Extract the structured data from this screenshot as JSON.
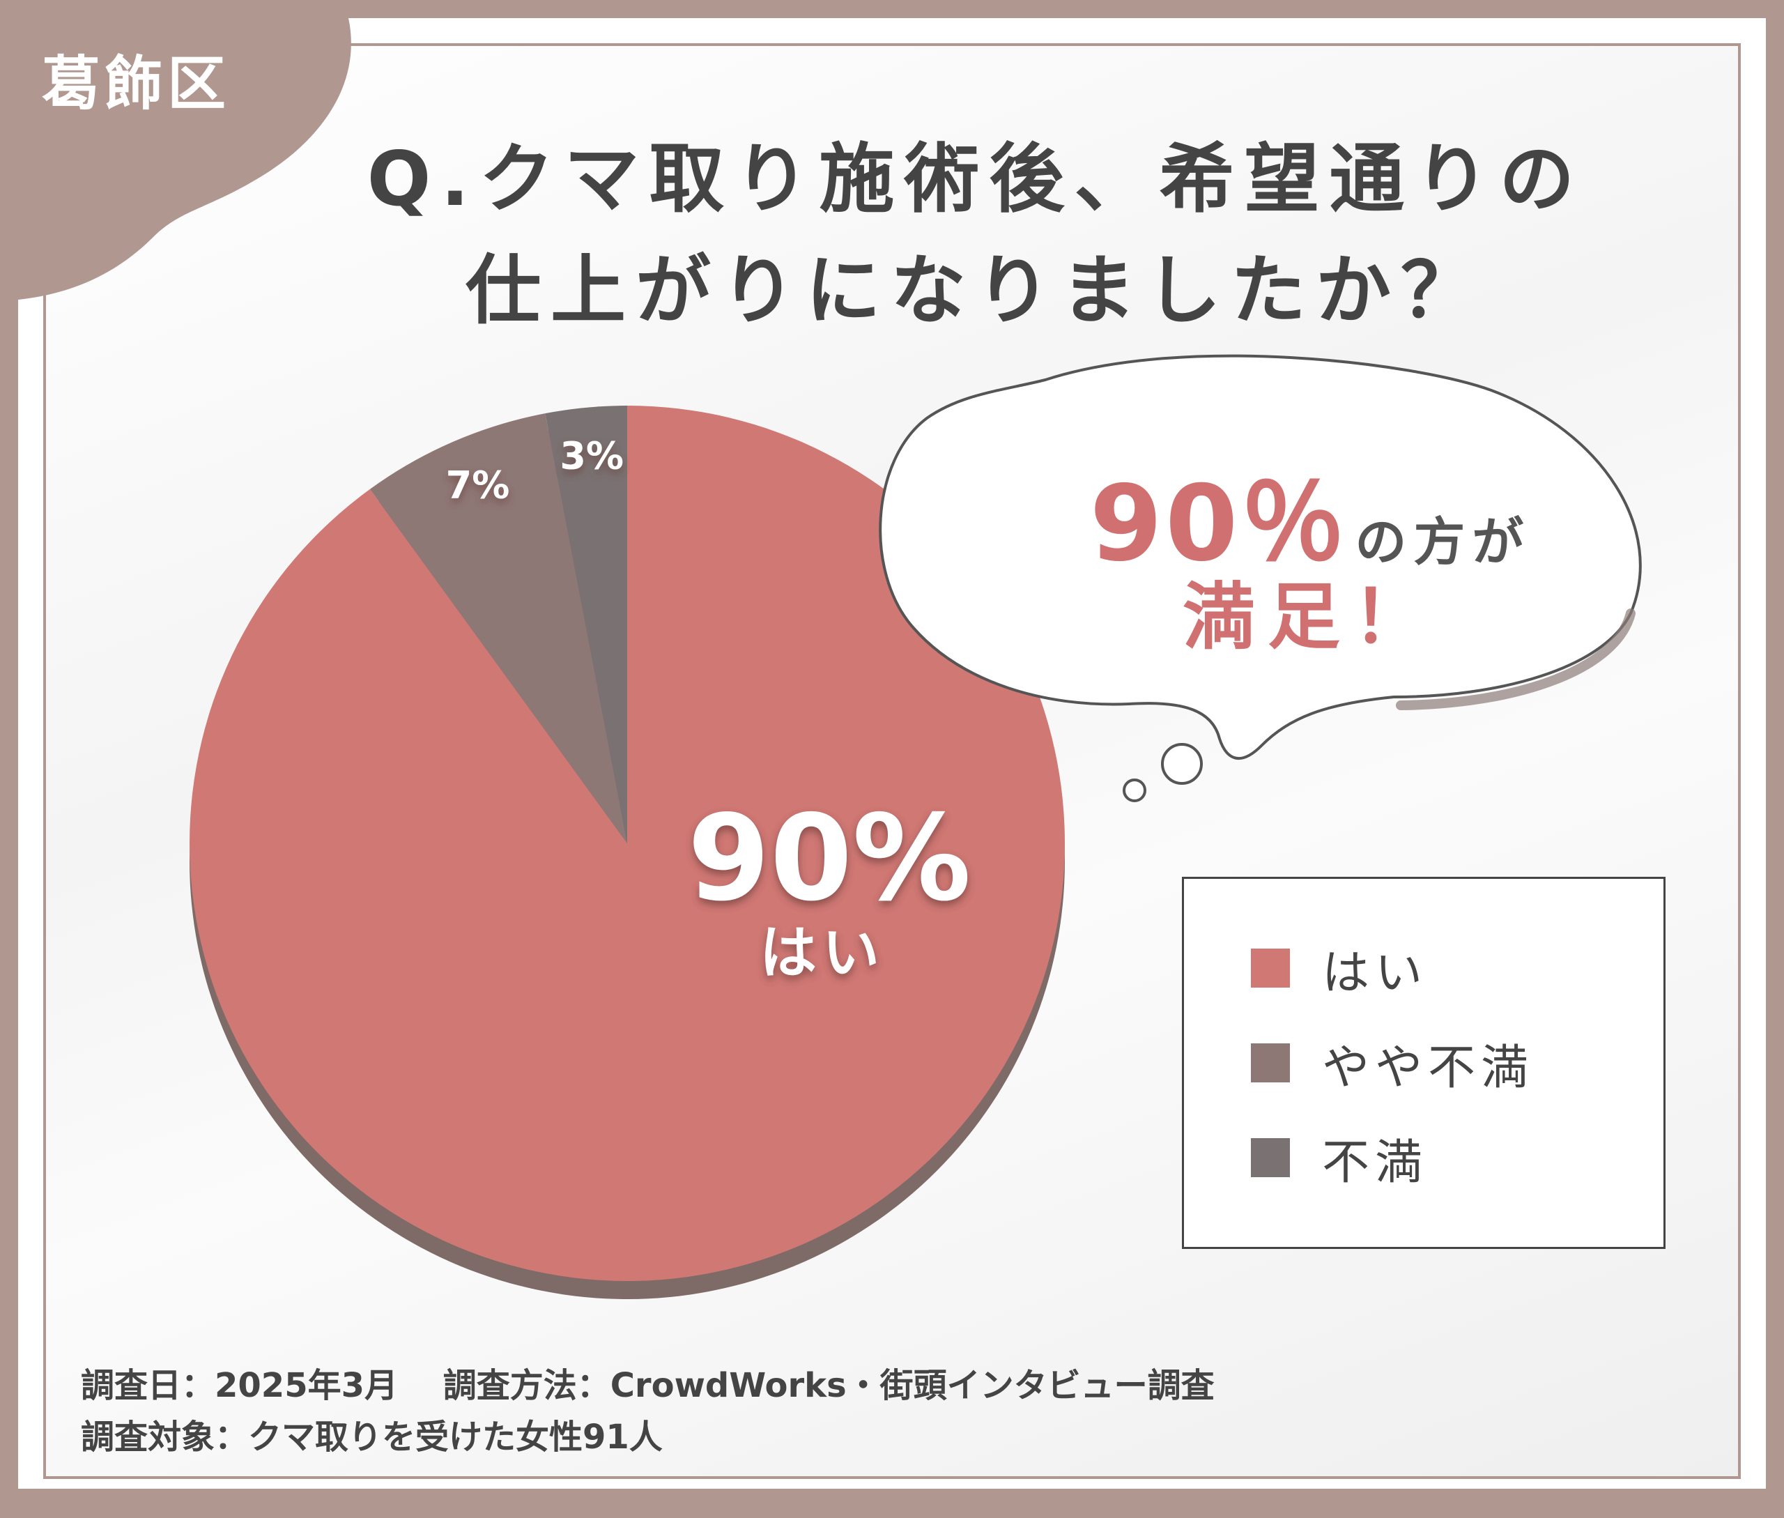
{
  "badge": {
    "label": "葛飾区"
  },
  "question": {
    "line1": "Q.クマ取り施術後、希望通りの",
    "line2": "仕上がりになりましたか？"
  },
  "bubble": {
    "percent": "90％",
    "suffix": "の方が",
    "line2": "満足！"
  },
  "footnotes": {
    "line1": "調査日：2025年3月　 調査方法：CrowdWorks・街頭インタビュー調査",
    "line2": "調査対象：クマ取りを受けた女性91人"
  },
  "colors": {
    "background_frame": "#b09890",
    "yes": "#d07874",
    "somewhat": "#8e7876",
    "no": "#7a7272",
    "shadow": "#7e6a66",
    "accent_text": "#d07070"
  },
  "chart_data": {
    "type": "pie",
    "title": "Q.クマ取り施術後、希望通りの仕上がりになりましたか？",
    "slices": [
      {
        "name": "はい",
        "value": 90,
        "label": "90%",
        "sublabel": "はい",
        "color": "#d07874"
      },
      {
        "name": "やや不満",
        "value": 7,
        "label": "7%",
        "color": "#8e7876"
      },
      {
        "name": "不満",
        "value": 3,
        "label": "3%",
        "color": "#7a7272"
      }
    ],
    "legend": [
      "はい",
      "やや不満",
      "不満"
    ],
    "legend_position": "right"
  }
}
